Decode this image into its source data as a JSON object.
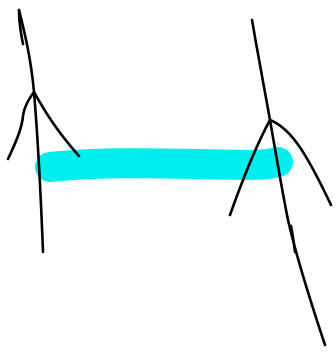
{
  "canvas": {
    "background": "#ffffff"
  },
  "colors": {
    "stroke": "#000000",
    "highlight": "#00eeee"
  },
  "drawing": {
    "strokes": [
      {
        "name": "left-figure-mast",
        "color_key": "stroke"
      },
      {
        "name": "left-figure-top-flick",
        "color_key": "stroke"
      },
      {
        "name": "left-figure-left-leg",
        "color_key": "stroke"
      },
      {
        "name": "left-figure-right-leg",
        "color_key": "stroke"
      },
      {
        "name": "right-figure-mast",
        "color_key": "stroke"
      },
      {
        "name": "right-figure-left-leg",
        "color_key": "stroke"
      },
      {
        "name": "right-figure-right-leg",
        "color_key": "stroke"
      },
      {
        "name": "right-figure-lower-stroke",
        "color_key": "stroke"
      },
      {
        "name": "right-figure-tick",
        "color_key": "stroke"
      },
      {
        "name": "cyan-connector-bar",
        "color_key": "highlight"
      }
    ]
  }
}
